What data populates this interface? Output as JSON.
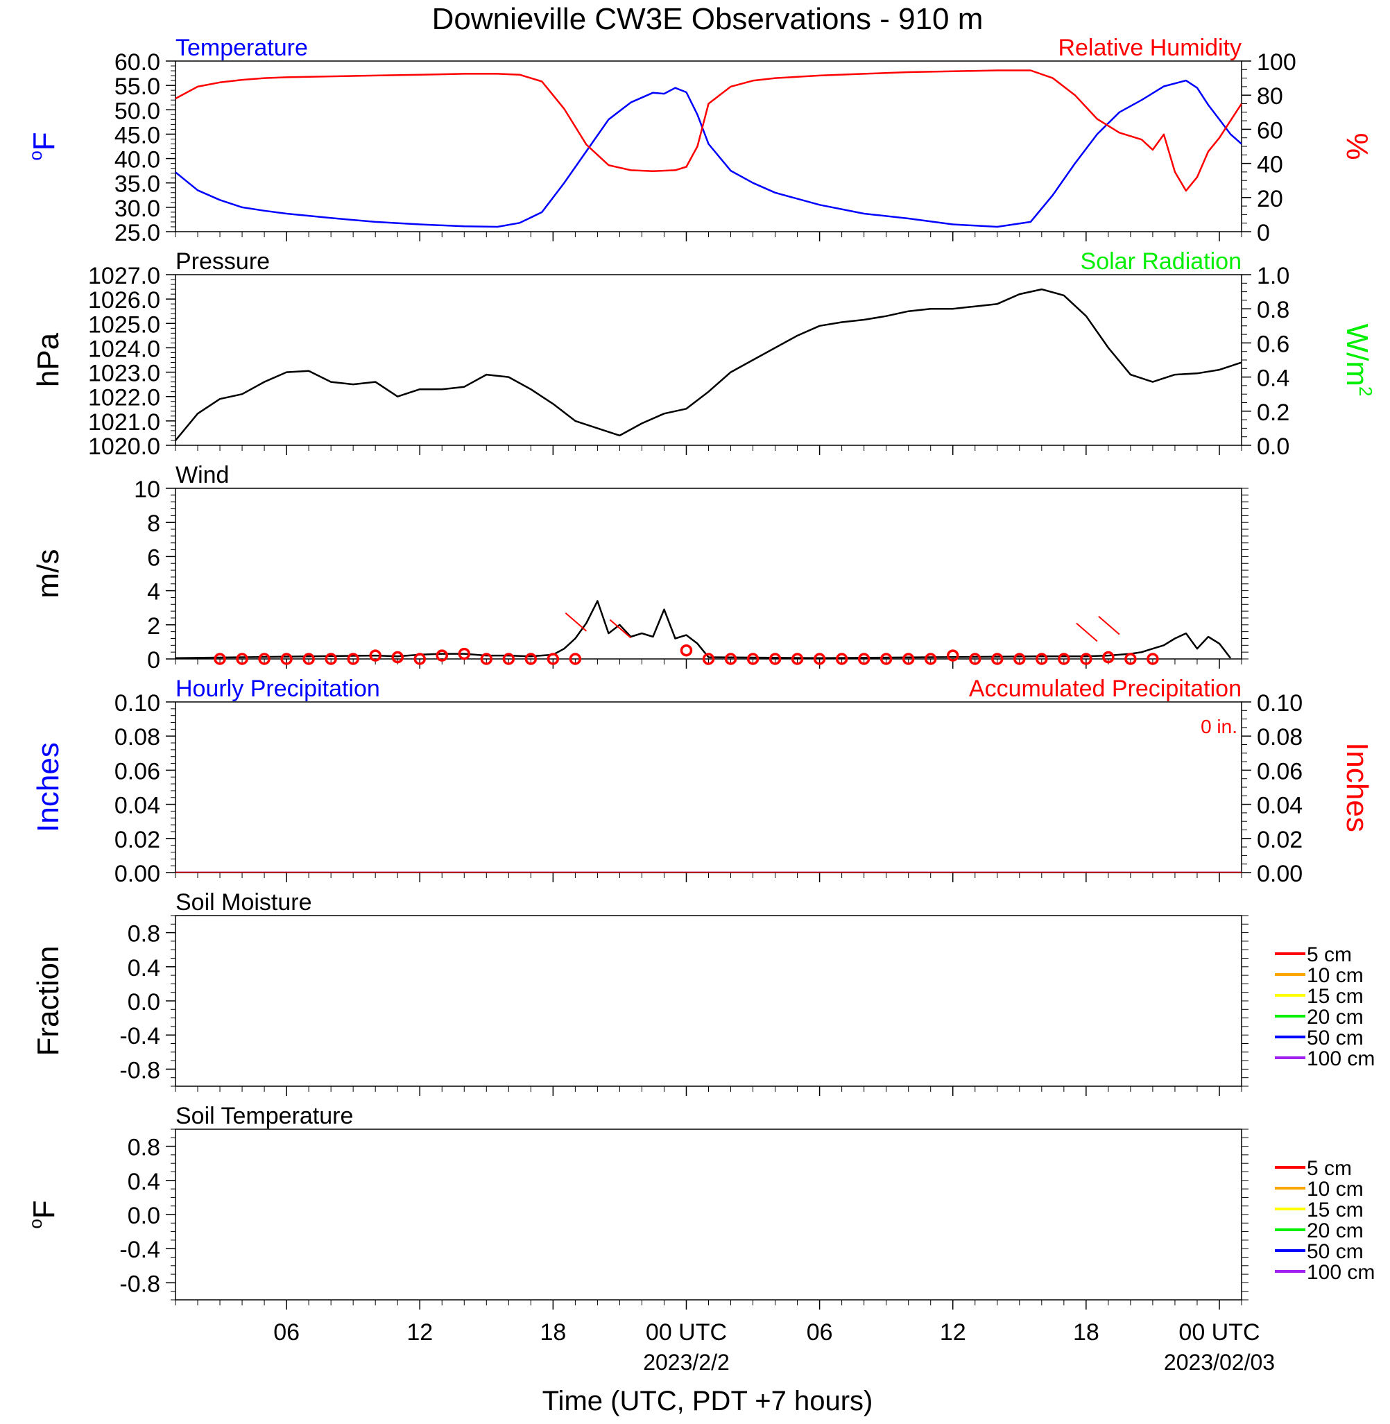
{
  "title": "Downieville CW3E Observations - 910 m",
  "xlabel": "Time (UTC, PDT +7 hours)",
  "x_ticks": [
    "06",
    "12",
    "18",
    "00 UTC",
    "06",
    "12",
    "18",
    "00 UTC"
  ],
  "x_dates": [
    "2023/2/2",
    "2023/02/03"
  ],
  "colors": {
    "blue": "#0000ff",
    "red": "#ff0000",
    "green": "#00ee00",
    "black": "#000000",
    "orange": "#ffa500",
    "yellow": "#ffff00",
    "purple": "#a020f0"
  },
  "chart_data": [
    {
      "type": "line",
      "title_left": "Temperature",
      "title_right": "Relative Humidity",
      "ylabel_left": "oF",
      "ylabel_right": "%",
      "ylim_left": [
        25,
        60
      ],
      "ylim_right": [
        0,
        100
      ],
      "yticks_left": [
        "60.0",
        "55.0",
        "50.0",
        "45.0",
        "40.0",
        "35.0",
        "30.0",
        "25.0"
      ],
      "yticks_right": [
        "100",
        "80",
        "60",
        "40",
        "20",
        "0"
      ],
      "x_range_hours": [
        1,
        49
      ],
      "series": [
        {
          "name": "Temperature",
          "axis": "left",
          "color": "#0000ff",
          "x": [
            1,
            2,
            3,
            4,
            5,
            6,
            8,
            10,
            12,
            14,
            15.5,
            16.5,
            17.5,
            18.5,
            19.5,
            20.5,
            21.5,
            22.5,
            23,
            23.5,
            24,
            24.5,
            25,
            26,
            27,
            28,
            30,
            32,
            34,
            36,
            38,
            39.5,
            40.5,
            41.5,
            42.5,
            43.5,
            44.5,
            45.5,
            46.5,
            47,
            47.5,
            48,
            48.5,
            49
          ],
          "y": [
            37.2,
            33.5,
            31.5,
            30,
            29.3,
            28.7,
            27.8,
            27,
            26.5,
            26.1,
            26,
            26.8,
            29,
            35,
            41.5,
            48,
            51.5,
            53.5,
            53.3,
            54.5,
            53.6,
            49,
            43,
            37.5,
            35,
            33,
            30.5,
            28.7,
            27.7,
            26.5,
            26,
            27,
            32.5,
            39,
            45,
            49.5,
            52,
            54.8,
            56,
            54.5,
            51,
            48,
            45,
            43
          ]
        },
        {
          "name": "Relative Humidity",
          "axis": "right",
          "color": "#ff0000",
          "x": [
            1,
            2,
            3,
            4,
            5,
            6,
            8,
            10,
            12,
            14,
            15.5,
            16.5,
            17.5,
            18.5,
            19.5,
            20.5,
            21.5,
            22.5,
            23.5,
            24,
            24.5,
            25,
            26,
            27,
            28,
            30,
            32,
            34,
            36,
            38,
            39.5,
            40.5,
            41.5,
            42.5,
            43.5,
            44.5,
            45,
            45.5,
            46,
            46.5,
            47,
            47.5,
            48,
            48.5,
            49
          ],
          "y": [
            78,
            85,
            87.5,
            89,
            90,
            90.5,
            91,
            91.5,
            92,
            92.5,
            92.5,
            92,
            88,
            72,
            51,
            39,
            36,
            35.5,
            36,
            38,
            50,
            75,
            85,
            88.5,
            90,
            91.5,
            92.5,
            93.5,
            94,
            94.5,
            94.5,
            90,
            80,
            66,
            58,
            54,
            48,
            57,
            35,
            24,
            32,
            47,
            55,
            65,
            75
          ]
        }
      ]
    },
    {
      "type": "line",
      "title_left": "Pressure",
      "title_right": "Solar Radiation",
      "ylabel_left": "hPa",
      "ylabel_right": "W/m2",
      "ylim_left": [
        1020,
        1027
      ],
      "ylim_right": [
        0,
        1
      ],
      "yticks_left": [
        "1027.0",
        "1026.0",
        "1025.0",
        "1024.0",
        "1023.0",
        "1022.0",
        "1021.0",
        "1020.0"
      ],
      "yticks_right": [
        "1.0",
        "0.8",
        "0.6",
        "0.4",
        "0.2",
        "0.0"
      ],
      "x_range_hours": [
        1,
        49
      ],
      "series": [
        {
          "name": "Pressure",
          "axis": "left",
          "color": "#000000",
          "x": [
            1,
            2,
            3,
            4,
            5,
            6,
            7,
            8,
            9,
            10,
            11,
            12,
            13,
            14,
            15,
            16,
            17,
            18,
            19,
            20,
            21,
            22,
            23,
            24,
            25,
            26,
            27,
            28,
            29,
            30,
            31,
            32,
            33,
            34,
            35,
            36,
            37,
            38,
            39,
            40,
            41,
            42,
            43,
            44,
            45,
            46,
            47,
            48,
            49
          ],
          "y": [
            1020.2,
            1021.3,
            1021.9,
            1022.1,
            1022.6,
            1023.0,
            1023.05,
            1022.6,
            1022.5,
            1022.6,
            1022.0,
            1022.3,
            1022.3,
            1022.4,
            1022.9,
            1022.8,
            1022.3,
            1021.7,
            1021.0,
            1020.7,
            1020.4,
            1020.9,
            1021.3,
            1021.5,
            1022.2,
            1023.0,
            1023.5,
            1024.0,
            1024.5,
            1024.9,
            1025.05,
            1025.15,
            1025.3,
            1025.5,
            1025.6,
            1025.6,
            1025.7,
            1025.8,
            1026.2,
            1026.4,
            1026.15,
            1025.3,
            1024.0,
            1022.9,
            1022.6,
            1022.9,
            1022.95,
            1023.1,
            1023.4
          ]
        }
      ]
    },
    {
      "type": "line",
      "title_left": "Wind",
      "ylabel_left": "m/s",
      "ylim_left": [
        0,
        10
      ],
      "yticks_left": [
        "10",
        "8",
        "6",
        "4",
        "2",
        "0"
      ],
      "x_range_hours": [
        1,
        49
      ],
      "series": [
        {
          "name": "Wind",
          "color": "#000000",
          "x": [
            1,
            10,
            11,
            12,
            13,
            14,
            15,
            16,
            17,
            18,
            18.5,
            19,
            19.5,
            20,
            20.5,
            21,
            21.5,
            22,
            22.5,
            23,
            23.5,
            24,
            24.5,
            25,
            30,
            35,
            40,
            42,
            43,
            44,
            44.5,
            45,
            45.5,
            46,
            46.5,
            47,
            47.5,
            48,
            48.5
          ],
          "y": [
            0.05,
            0.2,
            0.15,
            0.25,
            0.3,
            0.3,
            0.2,
            0.2,
            0.15,
            0.25,
            0.6,
            1.2,
            2.1,
            3.4,
            1.5,
            2.0,
            1.3,
            1.5,
            1.3,
            2.9,
            1.2,
            1.4,
            0.9,
            0.1,
            0.05,
            0.1,
            0.15,
            0.15,
            0.2,
            0.3,
            0.4,
            0.6,
            0.8,
            1.2,
            1.5,
            0.6,
            1.3,
            0.9,
            0.05
          ]
        }
      ],
      "markers": {
        "color": "#ff0000",
        "x": [
          3,
          4,
          5,
          6,
          7,
          8,
          9,
          10,
          11,
          12,
          13,
          14,
          15,
          16,
          17,
          18,
          19,
          24,
          25,
          26,
          27,
          28,
          29,
          30,
          31,
          32,
          33,
          34,
          35,
          36,
          37,
          38,
          39,
          40,
          41,
          42,
          43,
          44,
          45
        ],
        "y": [
          0,
          0,
          0,
          0,
          0,
          0,
          0,
          0.2,
          0.1,
          0,
          0.2,
          0.3,
          0,
          0,
          0,
          0,
          0,
          0.5,
          0,
          0,
          0,
          0,
          0,
          0,
          0,
          0,
          0,
          0,
          0,
          0.2,
          0,
          0,
          0,
          0,
          0,
          0,
          0.1,
          0,
          0
        ]
      }
    },
    {
      "type": "line",
      "title_left": "Hourly Precipitation",
      "title_right": "Accumulated Precipitation",
      "annotation": "0 in.",
      "ylabel_left": "Inches",
      "ylabel_right": "Inches",
      "ylim_left": [
        0,
        0.1
      ],
      "ylim_right": [
        0,
        0.1
      ],
      "yticks_left": [
        "0.10",
        "0.08",
        "0.06",
        "0.04",
        "0.02",
        "0.00"
      ],
      "yticks_right": [
        "0.10",
        "0.08",
        "0.06",
        "0.04",
        "0.02",
        "0.00"
      ],
      "x_range_hours": [
        1,
        49
      ],
      "series": [
        {
          "name": "Hourly Precipitation",
          "color": "#0000ff",
          "x": [
            1,
            49
          ],
          "y": [
            0,
            0
          ]
        },
        {
          "name": "Accumulated Precipitation",
          "color": "#ff0000",
          "x": [
            1,
            49
          ],
          "y": [
            0,
            0
          ]
        }
      ]
    },
    {
      "type": "line",
      "title_left": "Soil Moisture",
      "ylabel_left": "Fraction",
      "ylim_left": [
        -1,
        1
      ],
      "yticks_left": [
        "0.8",
        "0.4",
        "0.0",
        "-0.4",
        "-0.8"
      ],
      "legend": [
        "5 cm",
        "10 cm",
        "15 cm",
        "20 cm",
        "50 cm",
        "100 cm"
      ],
      "legend_colors": [
        "#ff0000",
        "#ffa500",
        "#ffff00",
        "#00ee00",
        "#0000ff",
        "#a020f0"
      ],
      "series": []
    },
    {
      "type": "line",
      "title_left": "Soil Temperature",
      "ylabel_left": "oF",
      "ylim_left": [
        -1,
        1
      ],
      "yticks_left": [
        "0.8",
        "0.4",
        "0.0",
        "-0.4",
        "-0.8"
      ],
      "legend": [
        "5 cm",
        "10 cm",
        "15 cm",
        "20 cm",
        "50 cm",
        "100 cm"
      ],
      "legend_colors": [
        "#ff0000",
        "#ffa500",
        "#ffff00",
        "#00ee00",
        "#0000ff",
        "#a020f0"
      ],
      "series": []
    }
  ]
}
